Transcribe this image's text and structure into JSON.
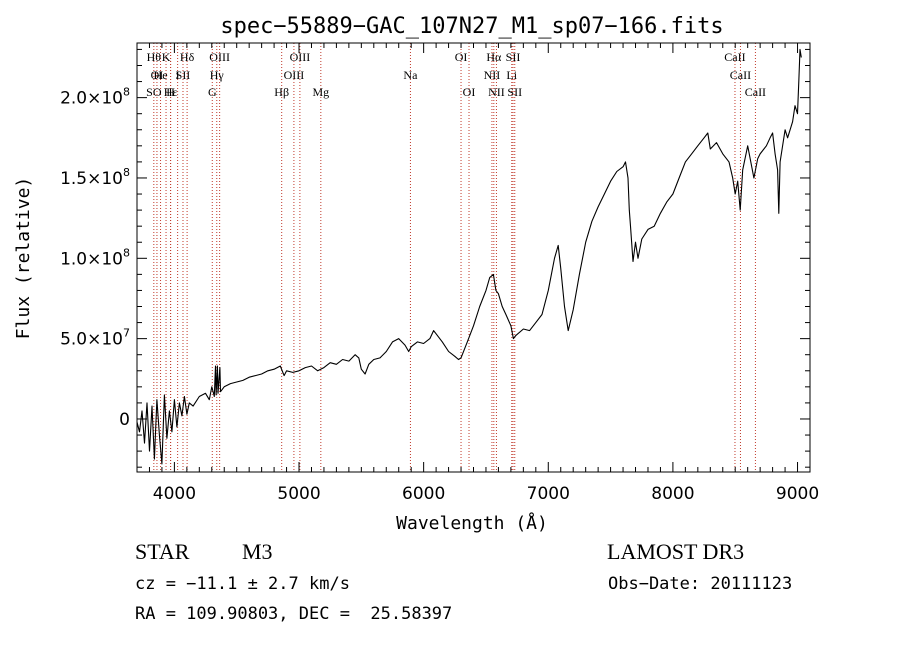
{
  "chart_data": {
    "type": "line",
    "title": "spec−55889−GAC_107N27_M1_sp07−166.fits",
    "xlabel": "Wavelength (Å)",
    "ylabel": "Flux (relative)",
    "xlim": [
      3700,
      9100
    ],
    "ylim": [
      -33000000,
      234000000
    ],
    "x_ticks": [
      {
        "value": 4000,
        "label": "4000"
      },
      {
        "value": 5000,
        "label": "5000"
      },
      {
        "value": 6000,
        "label": "6000"
      },
      {
        "value": 7000,
        "label": "7000"
      },
      {
        "value": 8000,
        "label": "8000"
      },
      {
        "value": 9000,
        "label": "9000"
      }
    ],
    "y_ticks": [
      {
        "value": 0,
        "base": "0",
        "exp": ""
      },
      {
        "value": 50000000,
        "base": "5.0×10",
        "exp": "7"
      },
      {
        "value": 100000000,
        "base": "1.0×10",
        "exp": "8"
      },
      {
        "value": 150000000,
        "base": "1.5×10",
        "exp": "8"
      },
      {
        "value": 200000000,
        "base": "2.0×10",
        "exp": "8"
      }
    ],
    "series": [
      {
        "name": "flux",
        "points": [
          [
            3700,
            -2000000
          ],
          [
            3720,
            -8000000
          ],
          [
            3740,
            5000000
          ],
          [
            3760,
            -15000000
          ],
          [
            3780,
            10000000
          ],
          [
            3800,
            -20000000
          ],
          [
            3820,
            8000000
          ],
          [
            3840,
            -25000000
          ],
          [
            3860,
            12000000
          ],
          [
            3880,
            -10000000
          ],
          [
            3900,
            -28000000
          ],
          [
            3920,
            15000000
          ],
          [
            3940,
            -12000000
          ],
          [
            3960,
            5000000
          ],
          [
            3980,
            -8000000
          ],
          [
            4000,
            12000000
          ],
          [
            4020,
            -5000000
          ],
          [
            4040,
            10000000
          ],
          [
            4060,
            2000000
          ],
          [
            4080,
            14000000
          ],
          [
            4100,
            3000000
          ],
          [
            4120,
            10000000
          ],
          [
            4150,
            8000000
          ],
          [
            4200,
            14000000
          ],
          [
            4250,
            16000000
          ],
          [
            4280,
            12000000
          ],
          [
            4300,
            20000000
          ],
          [
            4320,
            14000000
          ],
          [
            4330,
            33000000
          ],
          [
            4335,
            15000000
          ],
          [
            4345,
            33000000
          ],
          [
            4350,
            16000000
          ],
          [
            4365,
            32000000
          ],
          [
            4370,
            17000000
          ],
          [
            4400,
            20000000
          ],
          [
            4450,
            22000000
          ],
          [
            4500,
            23000000
          ],
          [
            4550,
            24000000
          ],
          [
            4600,
            26000000
          ],
          [
            4650,
            27000000
          ],
          [
            4700,
            28000000
          ],
          [
            4750,
            30000000
          ],
          [
            4800,
            31000000
          ],
          [
            4850,
            33000000
          ],
          [
            4880,
            27000000
          ],
          [
            4900,
            30000000
          ],
          [
            4950,
            29000000
          ],
          [
            5000,
            30000000
          ],
          [
            5050,
            32000000
          ],
          [
            5100,
            33000000
          ],
          [
            5150,
            30000000
          ],
          [
            5200,
            32000000
          ],
          [
            5250,
            35000000
          ],
          [
            5300,
            34000000
          ],
          [
            5350,
            37000000
          ],
          [
            5400,
            36000000
          ],
          [
            5450,
            40000000
          ],
          [
            5480,
            38000000
          ],
          [
            5500,
            31000000
          ],
          [
            5530,
            28000000
          ],
          [
            5560,
            34000000
          ],
          [
            5600,
            37000000
          ],
          [
            5650,
            38000000
          ],
          [
            5700,
            42000000
          ],
          [
            5750,
            48000000
          ],
          [
            5800,
            50000000
          ],
          [
            5850,
            46000000
          ],
          [
            5880,
            42000000
          ],
          [
            5900,
            45000000
          ],
          [
            5950,
            48000000
          ],
          [
            6000,
            47000000
          ],
          [
            6050,
            50000000
          ],
          [
            6080,
            55000000
          ],
          [
            6100,
            53000000
          ],
          [
            6150,
            48000000
          ],
          [
            6200,
            42000000
          ],
          [
            6250,
            39000000
          ],
          [
            6280,
            37000000
          ],
          [
            6300,
            38000000
          ],
          [
            6350,
            48000000
          ],
          [
            6400,
            58000000
          ],
          [
            6450,
            70000000
          ],
          [
            6500,
            80000000
          ],
          [
            6530,
            88000000
          ],
          [
            6560,
            90000000
          ],
          [
            6580,
            80000000
          ],
          [
            6600,
            78000000
          ],
          [
            6630,
            70000000
          ],
          [
            6660,
            65000000
          ],
          [
            6700,
            58000000
          ],
          [
            6720,
            50000000
          ],
          [
            6740,
            52000000
          ],
          [
            6800,
            56000000
          ],
          [
            6850,
            55000000
          ],
          [
            6900,
            60000000
          ],
          [
            6950,
            65000000
          ],
          [
            7000,
            80000000
          ],
          [
            7050,
            100000000
          ],
          [
            7080,
            108000000
          ],
          [
            7100,
            94000000
          ],
          [
            7130,
            70000000
          ],
          [
            7160,
            55000000
          ],
          [
            7200,
            68000000
          ],
          [
            7250,
            90000000
          ],
          [
            7300,
            110000000
          ],
          [
            7350,
            123000000
          ],
          [
            7400,
            132000000
          ],
          [
            7450,
            140000000
          ],
          [
            7500,
            148000000
          ],
          [
            7550,
            154000000
          ],
          [
            7600,
            157000000
          ],
          [
            7620,
            160000000
          ],
          [
            7640,
            150000000
          ],
          [
            7650,
            130000000
          ],
          [
            7660,
            120000000
          ],
          [
            7680,
            98000000
          ],
          [
            7700,
            110000000
          ],
          [
            7720,
            100000000
          ],
          [
            7750,
            112000000
          ],
          [
            7800,
            118000000
          ],
          [
            7850,
            120000000
          ],
          [
            7900,
            128000000
          ],
          [
            7950,
            135000000
          ],
          [
            8000,
            140000000
          ],
          [
            8050,
            150000000
          ],
          [
            8100,
            160000000
          ],
          [
            8150,
            165000000
          ],
          [
            8200,
            170000000
          ],
          [
            8250,
            175000000
          ],
          [
            8280,
            178000000
          ],
          [
            8300,
            168000000
          ],
          [
            8350,
            172000000
          ],
          [
            8400,
            165000000
          ],
          [
            8450,
            160000000
          ],
          [
            8480,
            150000000
          ],
          [
            8500,
            140000000
          ],
          [
            8520,
            148000000
          ],
          [
            8540,
            130000000
          ],
          [
            8560,
            155000000
          ],
          [
            8600,
            170000000
          ],
          [
            8650,
            150000000
          ],
          [
            8680,
            162000000
          ],
          [
            8700,
            165000000
          ],
          [
            8750,
            170000000
          ],
          [
            8780,
            175000000
          ],
          [
            8800,
            178000000
          ],
          [
            8820,
            165000000
          ],
          [
            8840,
            155000000
          ],
          [
            8850,
            128000000
          ],
          [
            8860,
            160000000
          ],
          [
            8880,
            170000000
          ],
          [
            8900,
            180000000
          ],
          [
            8920,
            175000000
          ],
          [
            8940,
            180000000
          ],
          [
            8960,
            185000000
          ],
          [
            8980,
            195000000
          ],
          [
            9000,
            190000000
          ],
          [
            9010,
            210000000
          ],
          [
            9020,
            230000000
          ],
          [
            9030,
            225000000
          ]
        ]
      }
    ],
    "lines": [
      {
        "x": 3835,
        "labels": [
          {
            "row": 0,
            "text": "Hθ"
          },
          {
            "row": 2,
            "text": "SO"
          }
        ]
      },
      {
        "x": 3860,
        "labels": [
          {
            "row": 1,
            "text": "OI"
          }
        ]
      },
      {
        "x": 3889,
        "labels": [
          {
            "row": 1,
            "text": "He"
          }
        ]
      },
      {
        "x": 3933,
        "labels": [
          {
            "row": 0,
            "text": "K"
          }
        ]
      },
      {
        "x": 3969,
        "labels": [
          {
            "row": 2,
            "text": "H"
          }
        ]
      },
      {
        "x": 3970,
        "labels": [
          {
            "row": 2,
            "text": "Hε"
          }
        ]
      },
      {
        "x": 4026,
        "labels": [
          {
            "row": 1,
            "text": "I"
          }
        ]
      },
      {
        "x": 4069,
        "labels": [
          {
            "row": 1,
            "text": "SII"
          }
        ]
      },
      {
        "x": 4102,
        "labels": [
          {
            "row": 0,
            "text": "Hδ"
          }
        ]
      },
      {
        "x": 4304,
        "labels": [
          {
            "row": 2,
            "text": "G"
          }
        ]
      },
      {
        "x": 4340,
        "labels": [
          {
            "row": 1,
            "text": "Hγ"
          }
        ]
      },
      {
        "x": 4363,
        "labels": [
          {
            "row": 0,
            "text": "OIII"
          }
        ]
      },
      {
        "x": 4861,
        "labels": [
          {
            "row": 2,
            "text": "Hβ"
          }
        ]
      },
      {
        "x": 4959,
        "labels": [
          {
            "row": 1,
            "text": "OIII"
          }
        ]
      },
      {
        "x": 5007,
        "labels": [
          {
            "row": 0,
            "text": "OIII"
          }
        ]
      },
      {
        "x": 5175,
        "labels": [
          {
            "row": 2,
            "text": "Mg"
          }
        ]
      },
      {
        "x": 5894,
        "labels": [
          {
            "row": 1,
            "text": "Na"
          }
        ]
      },
      {
        "x": 6300,
        "labels": [
          {
            "row": 0,
            "text": "OI"
          }
        ]
      },
      {
        "x": 6364,
        "labels": [
          {
            "row": 2,
            "text": "OI"
          }
        ]
      },
      {
        "x": 6548,
        "labels": [
          {
            "row": 1,
            "text": "NII"
          }
        ]
      },
      {
        "x": 6563,
        "labels": [
          {
            "row": 0,
            "text": "Hα"
          }
        ]
      },
      {
        "x": 6584,
        "labels": [
          {
            "row": 2,
            "text": "NII"
          }
        ]
      },
      {
        "x": 6707,
        "labels": [
          {
            "row": 1,
            "text": "Li"
          }
        ]
      },
      {
        "x": 6717,
        "labels": [
          {
            "row": 0,
            "text": "SII"
          }
        ]
      },
      {
        "x": 6731,
        "labels": [
          {
            "row": 2,
            "text": "SII"
          }
        ]
      },
      {
        "x": 8498,
        "labels": [
          {
            "row": 0,
            "text": "CaII"
          }
        ]
      },
      {
        "x": 8542,
        "labels": [
          {
            "row": 1,
            "text": "CaII"
          }
        ]
      },
      {
        "x": 8662,
        "labels": [
          {
            "row": 2,
            "text": "CaII"
          }
        ]
      }
    ]
  },
  "info": {
    "object_class": "STAR",
    "subclass": "M3",
    "survey": "LAMOST DR3",
    "redshift": "cz = −11.1 ± 2.7 km/s",
    "obs_date": "Obs−Date: 20111123",
    "coords": "RA = 109.90803, DEC =  25.58397"
  }
}
